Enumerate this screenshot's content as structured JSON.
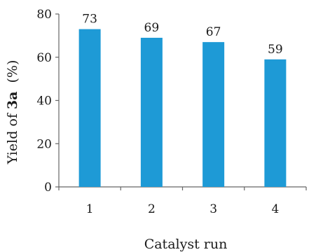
{
  "chart_data": {
    "type": "bar",
    "categories": [
      "1",
      "2",
      "3",
      "4"
    ],
    "values": [
      73,
      69,
      67,
      59
    ],
    "data_labels": [
      "73",
      "69",
      "67",
      "59"
    ],
    "xlabel": "Catalyst run",
    "ylabel": {
      "prefix": "Yield of ",
      "bold": "3a",
      "suffix": "  (%)"
    },
    "ylim": [
      0,
      80
    ],
    "yticks": [
      "0",
      "20",
      "40",
      "60",
      "80"
    ],
    "grid": false,
    "legend": "none",
    "bar_color": "#1e9ad6"
  }
}
